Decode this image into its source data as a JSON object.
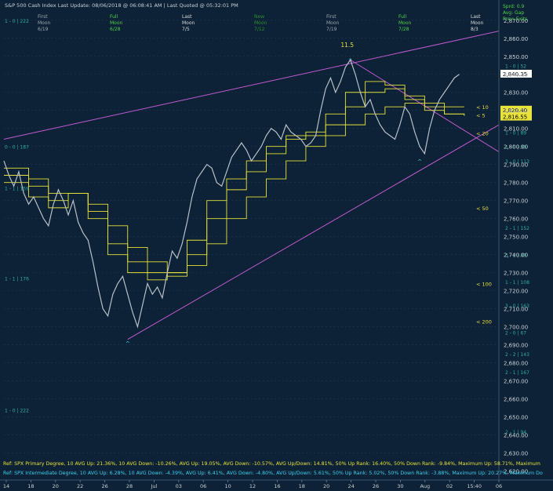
{
  "header": {
    "title": "S&P 500 Cash Index",
    "index_type": "Cash Index",
    "last_update": "Last Update: 08/06/2018 @ 06:08:41 AM",
    "last_quoted": "Last Quoted @ 05:32:01 PM",
    "right_lines": [
      "Sprd: 0.9",
      "Avg: Gap",
      "Prev: Exits"
    ]
  },
  "moon_phases": [
    {
      "phase": "First",
      "moon": "Moon",
      "date": "6/19",
      "color": "#9aa7b3"
    },
    {
      "phase": "Full",
      "moon": "Moon",
      "date": "6/28",
      "color": "#4dd24d"
    },
    {
      "phase": "Last",
      "moon": "Moon",
      "date": "7/5",
      "color": "#d8dde2"
    },
    {
      "phase": "New",
      "moon": "Moon",
      "date": "7/12",
      "color": "#2e8f2e"
    },
    {
      "phase": "First",
      "moon": "Moon",
      "date": "7/19",
      "color": "#9aa7b3"
    },
    {
      "phase": "Full",
      "moon": "Moon",
      "date": "7/28",
      "color": "#4dd24d"
    },
    {
      "phase": "Last",
      "moon": "Moon",
      "date": "8/3",
      "color": "#d8dde2"
    }
  ],
  "cycle_labels_left": [
    {
      "text": "1 - 0 | 222",
      "y": 2870
    },
    {
      "text": "0 - 0 | 187",
      "y": 2800
    },
    {
      "text": "1 - 1 | 159",
      "y": 2777
    },
    {
      "text": "1 - 1 | 176",
      "y": 2727
    },
    {
      "text": "1 - 0 | 222",
      "y": 2654
    }
  ],
  "cycle_labels_right": [
    {
      "text": "1 - 0 | 52",
      "y": 2845
    },
    {
      "text": "1 - 0 | 89",
      "y": 2808
    },
    {
      "text": "1 - 0 | 99",
      "y": 2800
    },
    {
      "text": "3 - 0 | 113",
      "y": 2792
    },
    {
      "text": "2 - 1 | 152",
      "y": 2755
    },
    {
      "text": "3 - 2 | 89",
      "y": 2740
    },
    {
      "text": "1 - 1 | 108",
      "y": 2725
    },
    {
      "text": "3 - 0 | 163",
      "y": 2712
    },
    {
      "text": "2 - 0 | 67",
      "y": 2697
    },
    {
      "text": "2 - 2 | 143",
      "y": 2685
    },
    {
      "text": "2 - 1 | 167",
      "y": 2675
    },
    {
      "text": "2 - 1 | 94",
      "y": 2642
    }
  ],
  "ma_labels": [
    {
      "text": "< 10",
      "y": 2822.0
    },
    {
      "text": "< 5",
      "y": 2817.5
    },
    {
      "text": "< 20",
      "y": 2807.5
    },
    {
      "text": "< 50",
      "y": 2766
    },
    {
      "text": "< 100",
      "y": 2724
    },
    {
      "text": "< 200",
      "y": 2703
    }
  ],
  "peak_label": "11.5",
  "price_tags": [
    {
      "text": "2,840.35",
      "y": 2840.35,
      "style": "white"
    },
    {
      "text": "2,820.40",
      "y": 2820.4,
      "style": "yellow"
    },
    {
      "text": "2,816.55",
      "y": 2816.55,
      "style": "yellow"
    }
  ],
  "footer": {
    "line1": "Ref: SPX Primary Degree, 10 AVG Up: 21.36%, 10 AVG Down: -10.26%, AVG Up: 19.05%, AVG Down: -10.57%, AVG Up/Down: 14.81%, 50%  Up Rank: 16.40%, 50% Down Rank: -9.84%, Maximum Up: 58.71%, Maximum",
    "line2": "Ref: SPX Intermediate Degree, 10 AVG Up: 6.28%, 10 AVG Down: -4.39%, AVG Up: 6.41%, AVG Down: -4.80%, AVG Up/Down: 5.61%, 50%  Up Rank: 5.02%, 50% Down Rank: -3.88%, Maximum Up: 20.27%, Maximum Do"
  },
  "colors": {
    "background": "#0d2236",
    "price": "#b8c0c8",
    "ma": "#e8e23a",
    "trendline": "#c05ad0",
    "grid": "#1f3a52",
    "axis_text": "#c8d0d8",
    "cycle_text": "#2fb0a0",
    "footer1": "#e8e23a",
    "footer2": "#3ad0f0"
  },
  "chart_data": {
    "type": "line",
    "title": "S&P 500 Cash Index",
    "y_axis": {
      "ticks": [
        "2,870.00",
        "2,860.00",
        "2,850.00",
        "2,840.00",
        "2,830.00",
        "2,820.00",
        "2,810.00",
        "2,800.00",
        "2,790.00",
        "2,780.00",
        "2,770.00",
        "2,760.00",
        "2,750.00",
        "2,740.00",
        "2,730.00",
        "2,720.00",
        "2,710.00",
        "2,700.00",
        "2,690.00",
        "2,680.00",
        "2,670.00",
        "2,660.00",
        "2,650.00",
        "2,640.00",
        "2,630.00",
        "2,620.00"
      ],
      "ylim": [
        2615,
        2876
      ]
    },
    "x_axis": {
      "ticks": [
        "14",
        "18",
        "20",
        "22",
        "26",
        "28",
        "Jul",
        "03",
        "06",
        "10",
        "12",
        "16",
        "18",
        "20",
        "24",
        "26",
        "30",
        "Aug",
        "02",
        "15:40",
        "06"
      ],
      "xlim": [
        0,
        100
      ]
    },
    "series": [
      {
        "name": "SPX",
        "style": "price",
        "points": [
          [
            0,
            2792
          ],
          [
            1,
            2784
          ],
          [
            2,
            2778
          ],
          [
            3,
            2786
          ],
          [
            4,
            2774
          ],
          [
            5,
            2768
          ],
          [
            6,
            2772
          ],
          [
            7,
            2766
          ],
          [
            8,
            2760
          ],
          [
            9,
            2756
          ],
          [
            10,
            2768
          ],
          [
            11,
            2776
          ],
          [
            12,
            2770
          ],
          [
            13,
            2762
          ],
          [
            14,
            2770
          ],
          [
            15,
            2758
          ],
          [
            16,
            2752
          ],
          [
            17,
            2748
          ],
          [
            18,
            2736
          ],
          [
            19,
            2722
          ],
          [
            20,
            2710
          ],
          [
            21,
            2706
          ],
          [
            22,
            2718
          ],
          [
            23,
            2724
          ],
          [
            24,
            2728
          ],
          [
            25,
            2718
          ],
          [
            26,
            2708
          ],
          [
            27,
            2700
          ],
          [
            28,
            2712
          ],
          [
            29,
            2724
          ],
          [
            30,
            2718
          ],
          [
            31,
            2722
          ],
          [
            32,
            2716
          ],
          [
            33,
            2730
          ],
          [
            34,
            2742
          ],
          [
            35,
            2738
          ],
          [
            36,
            2746
          ],
          [
            37,
            2758
          ],
          [
            38,
            2772
          ],
          [
            39,
            2782
          ],
          [
            40,
            2786
          ],
          [
            41,
            2790
          ],
          [
            42,
            2788
          ],
          [
            43,
            2780
          ],
          [
            44,
            2778
          ],
          [
            45,
            2786
          ],
          [
            46,
            2794
          ],
          [
            47,
            2798
          ],
          [
            48,
            2802
          ],
          [
            49,
            2798
          ],
          [
            50,
            2792
          ],
          [
            51,
            2796
          ],
          [
            52,
            2800
          ],
          [
            53,
            2806
          ],
          [
            54,
            2810
          ],
          [
            55,
            2808
          ],
          [
            56,
            2804
          ],
          [
            57,
            2812
          ],
          [
            58,
            2808
          ],
          [
            59,
            2806
          ],
          [
            60,
            2804
          ],
          [
            61,
            2800
          ],
          [
            62,
            2802
          ],
          [
            63,
            2806
          ],
          [
            64,
            2820
          ],
          [
            65,
            2832
          ],
          [
            66,
            2838
          ],
          [
            67,
            2830
          ],
          [
            68,
            2836
          ],
          [
            69,
            2844
          ],
          [
            70,
            2848
          ],
          [
            71,
            2840
          ],
          [
            72,
            2830
          ],
          [
            73,
            2822
          ],
          [
            74,
            2826
          ],
          [
            75,
            2818
          ],
          [
            76,
            2812
          ],
          [
            77,
            2808
          ],
          [
            78,
            2806
          ],
          [
            79,
            2804
          ],
          [
            80,
            2812
          ],
          [
            81,
            2822
          ],
          [
            82,
            2818
          ],
          [
            83,
            2808
          ],
          [
            84,
            2800
          ],
          [
            85,
            2796
          ],
          [
            86,
            2810
          ],
          [
            87,
            2820
          ],
          [
            88,
            2826
          ],
          [
            89,
            2830
          ],
          [
            90,
            2834
          ],
          [
            91,
            2838
          ],
          [
            92,
            2840
          ]
        ]
      },
      {
        "name": "5",
        "style": "ma",
        "points": [
          [
            0,
            2780
          ],
          [
            5,
            2772
          ],
          [
            9,
            2766
          ],
          [
            13,
            2774
          ],
          [
            17,
            2760
          ],
          [
            21,
            2740
          ],
          [
            25,
            2730
          ],
          [
            29,
            2726
          ],
          [
            33,
            2730
          ],
          [
            37,
            2748
          ],
          [
            41,
            2770
          ],
          [
            45,
            2782
          ],
          [
            49,
            2792
          ],
          [
            53,
            2800
          ],
          [
            57,
            2806
          ],
          [
            61,
            2808
          ],
          [
            65,
            2818
          ],
          [
            69,
            2830
          ],
          [
            73,
            2836
          ],
          [
            77,
            2834
          ],
          [
            81,
            2826
          ],
          [
            85,
            2820
          ],
          [
            89,
            2818
          ],
          [
            93,
            2817.5
          ]
        ]
      },
      {
        "name": "10",
        "style": "ma",
        "points": [
          [
            0,
            2784
          ],
          [
            5,
            2778
          ],
          [
            9,
            2770
          ],
          [
            13,
            2774
          ],
          [
            17,
            2764
          ],
          [
            21,
            2746
          ],
          [
            25,
            2736
          ],
          [
            29,
            2730
          ],
          [
            33,
            2728
          ],
          [
            37,
            2740
          ],
          [
            41,
            2760
          ],
          [
            45,
            2776
          ],
          [
            49,
            2786
          ],
          [
            53,
            2796
          ],
          [
            57,
            2804
          ],
          [
            61,
            2806
          ],
          [
            65,
            2812
          ],
          [
            69,
            2822
          ],
          [
            73,
            2830
          ],
          [
            77,
            2832
          ],
          [
            81,
            2828
          ],
          [
            85,
            2824
          ],
          [
            89,
            2822
          ],
          [
            93,
            2822
          ]
        ]
      },
      {
        "name": "20",
        "style": "ma",
        "points": [
          [
            0,
            2788
          ],
          [
            5,
            2782
          ],
          [
            9,
            2774
          ],
          [
            13,
            2774
          ],
          [
            17,
            2768
          ],
          [
            21,
            2756
          ],
          [
            25,
            2744
          ],
          [
            29,
            2736
          ],
          [
            33,
            2730
          ],
          [
            37,
            2734
          ],
          [
            41,
            2746
          ],
          [
            45,
            2760
          ],
          [
            49,
            2772
          ],
          [
            53,
            2782
          ],
          [
            57,
            2792
          ],
          [
            61,
            2800
          ],
          [
            65,
            2806
          ],
          [
            69,
            2812
          ],
          [
            73,
            2818
          ],
          [
            77,
            2822
          ],
          [
            81,
            2824
          ],
          [
            85,
            2822
          ],
          [
            89,
            2818
          ],
          [
            93,
            2817
          ]
        ]
      }
    ],
    "trendlines": [
      {
        "name": "upper",
        "from": [
          0,
          2804
        ],
        "to": [
          100,
          2864
        ]
      },
      {
        "name": "lower",
        "from": [
          25,
          2693
        ],
        "to": [
          100,
          2812
        ]
      },
      {
        "name": "descending",
        "from": [
          70,
          2848
        ],
        "to": [
          100,
          2797
        ]
      }
    ],
    "markers": [
      {
        "x": 25,
        "y": 2693,
        "text": "^"
      },
      {
        "x": 70,
        "y": 2850,
        "text": "^"
      },
      {
        "x": 84,
        "y": 2794,
        "text": "^"
      }
    ]
  }
}
